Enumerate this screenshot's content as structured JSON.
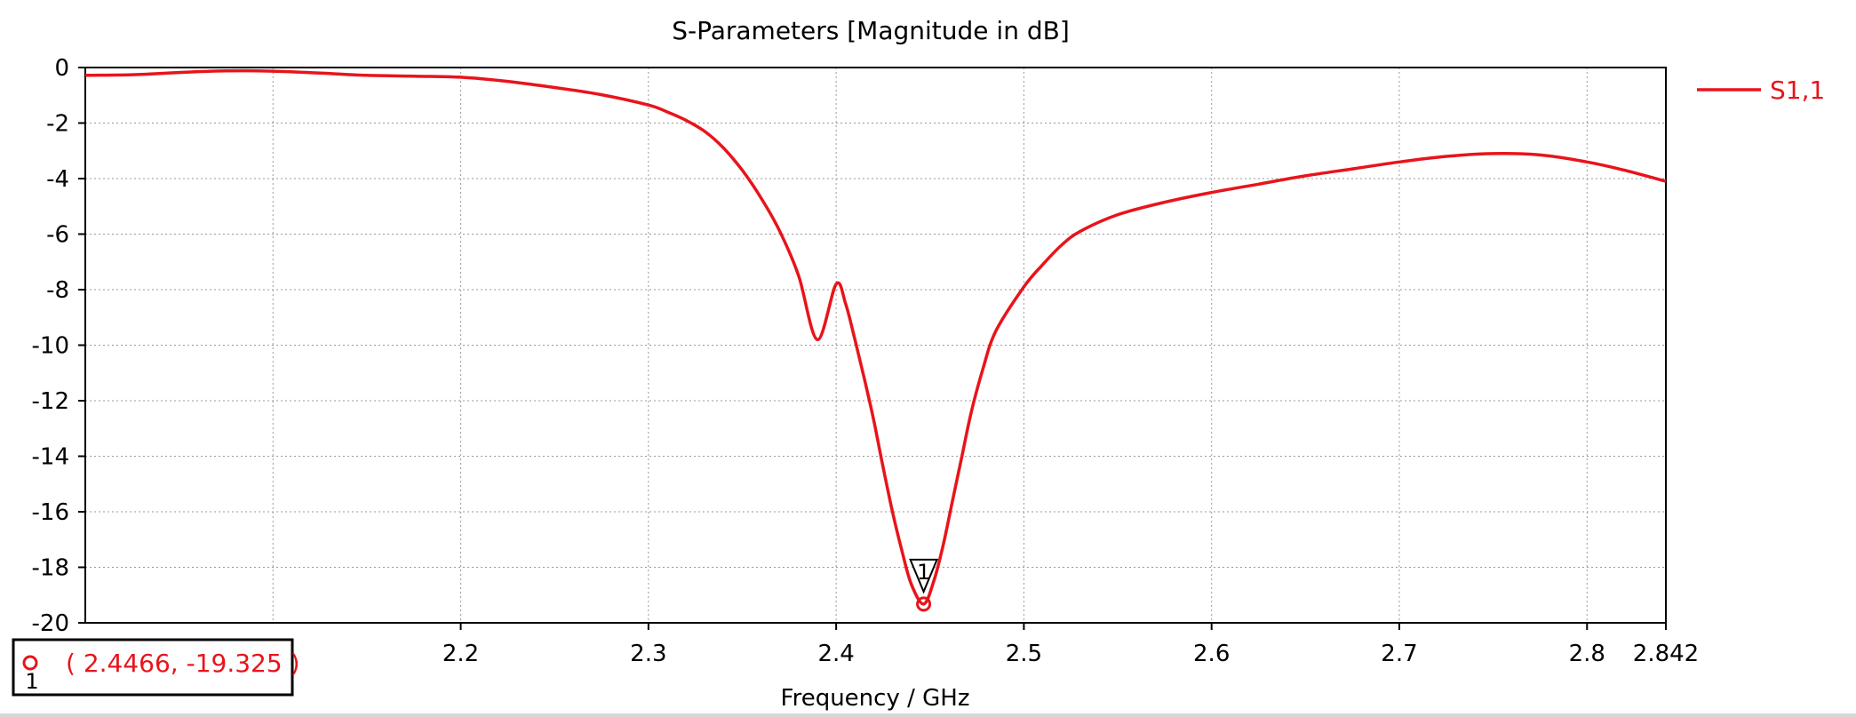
{
  "colors": {
    "curve": "#e8141b",
    "grid": "#9a9a9a",
    "axis": "#000000"
  },
  "chart_data": {
    "type": "line",
    "title": "S-Parameters [Magnitude in dB]",
    "xlabel": "Frequency / GHz",
    "ylabel": "",
    "xlim": [
      2.0,
      2.842
    ],
    "ylim": [
      -20,
      0
    ],
    "x_ticks": [
      {
        "value": 2.2,
        "label": "2.2"
      },
      {
        "value": 2.3,
        "label": "2.3"
      },
      {
        "value": 2.4,
        "label": "2.4"
      },
      {
        "value": 2.5,
        "label": "2.5"
      },
      {
        "value": 2.6,
        "label": "2.6"
      },
      {
        "value": 2.7,
        "label": "2.7"
      },
      {
        "value": 2.8,
        "label": "2.8"
      },
      {
        "value": 2.842,
        "label": "2.842"
      }
    ],
    "x_grid": [
      2.1,
      2.2,
      2.3,
      2.4,
      2.5,
      2.6,
      2.7,
      2.8
    ],
    "y_ticks": [
      {
        "value": 0,
        "label": "0"
      },
      {
        "value": -2,
        "label": "-2"
      },
      {
        "value": -4,
        "label": "-4"
      },
      {
        "value": -6,
        "label": "-6"
      },
      {
        "value": -8,
        "label": "-8"
      },
      {
        "value": -10,
        "label": "-10"
      },
      {
        "value": -12,
        "label": "-12"
      },
      {
        "value": -14,
        "label": "-14"
      },
      {
        "value": -16,
        "label": "-16"
      },
      {
        "value": -18,
        "label": "-18"
      },
      {
        "value": -20,
        "label": "-20"
      }
    ],
    "grid": true,
    "legend_position": "top-right",
    "series": [
      {
        "name": "S1,1",
        "color": "#e8141b",
        "points": [
          [
            2.0,
            -0.28
          ],
          [
            2.025,
            -0.26
          ],
          [
            2.05,
            -0.18
          ],
          [
            2.075,
            -0.12
          ],
          [
            2.1,
            -0.13
          ],
          [
            2.125,
            -0.2
          ],
          [
            2.15,
            -0.28
          ],
          [
            2.175,
            -0.31
          ],
          [
            2.2,
            -0.35
          ],
          [
            2.225,
            -0.5
          ],
          [
            2.25,
            -0.72
          ],
          [
            2.275,
            -0.98
          ],
          [
            2.3,
            -1.35
          ],
          [
            2.31,
            -1.6
          ],
          [
            2.32,
            -1.9
          ],
          [
            2.33,
            -2.3
          ],
          [
            2.34,
            -2.9
          ],
          [
            2.35,
            -3.7
          ],
          [
            2.36,
            -4.7
          ],
          [
            2.37,
            -5.9
          ],
          [
            2.38,
            -7.5
          ],
          [
            2.39,
            -9.8
          ],
          [
            2.4,
            -7.8
          ],
          [
            2.405,
            -8.5
          ],
          [
            2.41,
            -9.8
          ],
          [
            2.415,
            -11.2
          ],
          [
            2.42,
            -12.7
          ],
          [
            2.425,
            -14.4
          ],
          [
            2.43,
            -16.0
          ],
          [
            2.435,
            -17.4
          ],
          [
            2.44,
            -18.6
          ],
          [
            2.4466,
            -19.325
          ],
          [
            2.452,
            -18.5
          ],
          [
            2.457,
            -17.2
          ],
          [
            2.462,
            -15.6
          ],
          [
            2.467,
            -14.0
          ],
          [
            2.472,
            -12.4
          ],
          [
            2.478,
            -10.9
          ],
          [
            2.485,
            -9.5
          ],
          [
            2.5,
            -7.9
          ],
          [
            2.51,
            -7.1
          ],
          [
            2.52,
            -6.4
          ],
          [
            2.53,
            -5.9
          ],
          [
            2.55,
            -5.3
          ],
          [
            2.575,
            -4.85
          ],
          [
            2.6,
            -4.5
          ],
          [
            2.625,
            -4.2
          ],
          [
            2.65,
            -3.9
          ],
          [
            2.675,
            -3.65
          ],
          [
            2.7,
            -3.4
          ],
          [
            2.725,
            -3.2
          ],
          [
            2.75,
            -3.1
          ],
          [
            2.775,
            -3.15
          ],
          [
            2.8,
            -3.4
          ],
          [
            2.82,
            -3.7
          ],
          [
            2.842,
            -4.1
          ]
        ]
      }
    ],
    "marker": {
      "label": "1",
      "x": 2.4466,
      "y": -19.325,
      "readout": "( 2.4466, -19.325 )"
    }
  }
}
